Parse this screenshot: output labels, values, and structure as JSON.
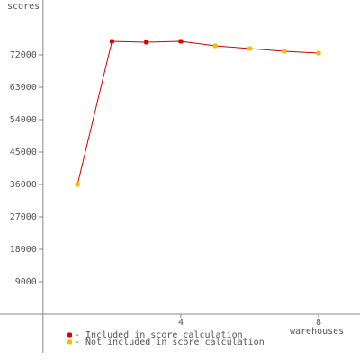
{
  "chart_data": {
    "type": "line",
    "y_label": "scores",
    "x_label": "warehouses",
    "x": [
      1,
      2,
      3,
      4,
      5,
      6,
      7,
      8
    ],
    "series": [
      {
        "color": "#cc0000",
        "values": [
          36000,
          75750,
          75500,
          75750,
          74500,
          73750,
          73000,
          72500
        ],
        "point_colors": [
          "#f0c000",
          "#dd0000",
          "#dd0000",
          "#dd0000",
          "#f0c000",
          "#f0c000",
          "#f0c000",
          "#f0c000"
        ]
      }
    ],
    "xlim": [
      -1.25,
      9.2
    ],
    "xticks": [
      4,
      8
    ],
    "ylim": [
      -10750,
      87250
    ],
    "yticks": [
      9000,
      18000,
      27000,
      36000,
      45000,
      54000,
      63000,
      72000
    ],
    "legend": [
      {
        "name": "- Included in score calculation",
        "color": "#dd0000"
      },
      {
        "name": "- Not included in score calculation",
        "color": "#f0c000"
      }
    ]
  }
}
